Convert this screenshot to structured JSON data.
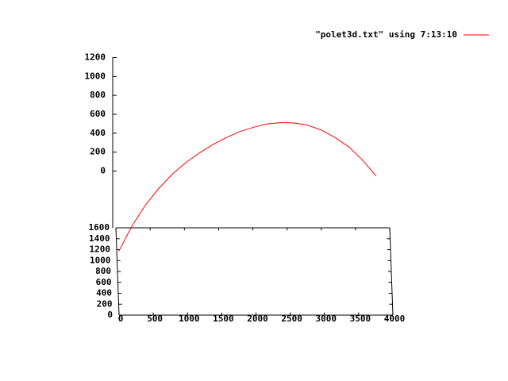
{
  "chart_data": {
    "type": "line3d",
    "legend": "top-right",
    "series": [
      {
        "name": "\"polet3d.txt\" using 7:13:10",
        "color": "#ff0000",
        "x": [
          0,
          200,
          400,
          600,
          800,
          1000,
          1200,
          1400,
          1600,
          1800,
          2000,
          2200,
          2400,
          2600,
          2800,
          3000,
          3200,
          3400,
          3600,
          3800
        ],
        "y": [
          130,
          420,
          640,
          810,
          940,
          1040,
          1120,
          1190,
          1250,
          1300,
          1340,
          1380,
          1410,
          1440,
          1470,
          1500,
          1520,
          1540,
          1560,
          1580
        ],
        "z": [
          0,
          100,
          190,
          270,
          345,
          410,
          465,
          515,
          555,
          590,
          612,
          625,
          622,
          600,
          560,
          490,
          400,
          290,
          140,
          -40
        ]
      }
    ],
    "xlim": [
      0,
      4000
    ],
    "ylim": [
      0,
      1600
    ],
    "zlim": [
      0,
      1200
    ],
    "ticslevel": 0.5,
    "xticks": [
      0,
      500,
      1000,
      1500,
      2000,
      2500,
      3000,
      3500,
      4000
    ],
    "yticks": [
      0,
      200,
      400,
      600,
      800,
      1000,
      1200,
      1400,
      1600
    ],
    "zticks": [
      0,
      200,
      400,
      600,
      800,
      1000,
      1200
    ]
  }
}
